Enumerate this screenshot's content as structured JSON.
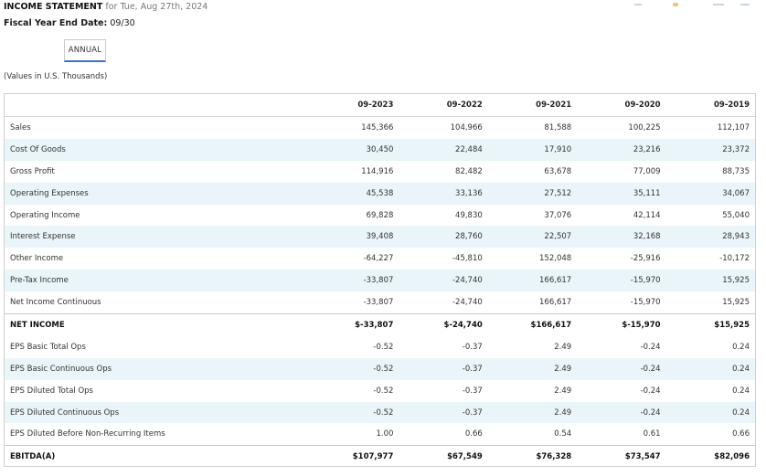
{
  "header": {
    "title": "INCOME STATEMENT",
    "date_text": "for Tue, Aug 27th, 2024",
    "fiscal_label": "Fiscal Year End Date:",
    "fiscal_value": "09/30"
  },
  "tabs": [
    {
      "label": "ANNUAL",
      "active": true
    }
  ],
  "values_note": "(Values in U.S. Thousands)",
  "colors": {
    "row_alt": "#e9f5f8",
    "tab_underline": "#3a76c4",
    "border": "#cfcfcf"
  },
  "table": {
    "columns": [
      "09-2023",
      "09-2022",
      "09-2021",
      "09-2020",
      "09-2019"
    ],
    "rows": [
      {
        "label": "Sales",
        "values": [
          "145,366",
          "104,966",
          "81,588",
          "100,225",
          "112,107"
        ],
        "alt": false,
        "total": false
      },
      {
        "label": "Cost Of Goods",
        "values": [
          "30,450",
          "22,484",
          "17,910",
          "23,216",
          "23,372"
        ],
        "alt": true,
        "total": false
      },
      {
        "label": "Gross Profit",
        "values": [
          "114,916",
          "82,482",
          "63,678",
          "77,009",
          "88,735"
        ],
        "alt": false,
        "total": false
      },
      {
        "label": "Operating Expenses",
        "values": [
          "45,538",
          "33,136",
          "27,512",
          "35,111",
          "34,067"
        ],
        "alt": true,
        "total": false
      },
      {
        "label": "Operating Income",
        "values": [
          "69,828",
          "49,830",
          "37,076",
          "42,114",
          "55,040"
        ],
        "alt": false,
        "total": false
      },
      {
        "label": "Interest Expense",
        "values": [
          "39,408",
          "28,760",
          "22,507",
          "32,168",
          "28,943"
        ],
        "alt": true,
        "total": false
      },
      {
        "label": "Other Income",
        "values": [
          "-64,227",
          "-45,810",
          "152,048",
          "-25,916",
          "-10,172"
        ],
        "alt": false,
        "total": false
      },
      {
        "label": "Pre-Tax Income",
        "values": [
          "-33,807",
          "-24,740",
          "166,617",
          "-15,970",
          "15,925"
        ],
        "alt": true,
        "total": false
      },
      {
        "label": "Net Income Continuous",
        "values": [
          "-33,807",
          "-24,740",
          "166,617",
          "-15,970",
          "15,925"
        ],
        "alt": false,
        "total": false
      },
      {
        "label": "NET INCOME",
        "values": [
          "$-33,807",
          "$-24,740",
          "$166,617",
          "$-15,970",
          "$15,925"
        ],
        "alt": false,
        "total": true
      },
      {
        "label": "EPS Basic Total Ops",
        "values": [
          "-0.52",
          "-0.37",
          "2.49",
          "-0.24",
          "0.24"
        ],
        "alt": false,
        "total": false
      },
      {
        "label": "EPS Basic Continuous Ops",
        "values": [
          "-0.52",
          "-0.37",
          "2.49",
          "-0.24",
          "0.24"
        ],
        "alt": true,
        "total": false
      },
      {
        "label": "EPS Diluted Total Ops",
        "values": [
          "-0.52",
          "-0.37",
          "2.49",
          "-0.24",
          "0.24"
        ],
        "alt": false,
        "total": false
      },
      {
        "label": "EPS Diluted Continuous Ops",
        "values": [
          "-0.52",
          "-0.37",
          "2.49",
          "-0.24",
          "0.24"
        ],
        "alt": true,
        "total": false
      },
      {
        "label": "EPS Diluted Before Non-Recurring Items",
        "values": [
          "1.00",
          "0.66",
          "0.54",
          "0.61",
          "0.66"
        ],
        "alt": false,
        "total": false
      },
      {
        "label": "EBITDA(A)",
        "values": [
          "$107,977",
          "$67,549",
          "$76,328",
          "$73,547",
          "$82,096"
        ],
        "alt": false,
        "total": true
      }
    ]
  }
}
